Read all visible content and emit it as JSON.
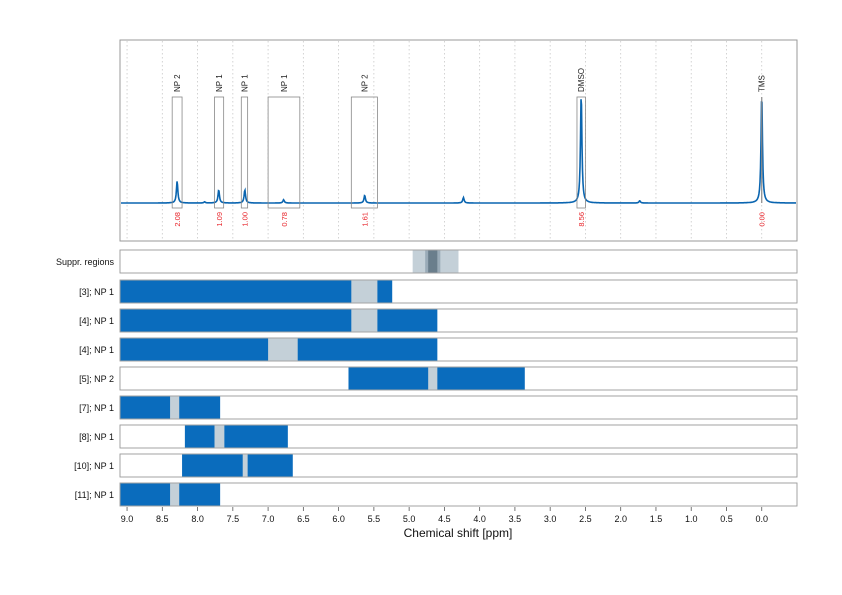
{
  "chart_data": {
    "type": "nmr-spectrum",
    "xlabel": "Chemical shift [ppm]",
    "xlim": [
      9.1,
      -0.5
    ],
    "xticks": [
      "9.0",
      "8.5",
      "8.0",
      "7.5",
      "7.0",
      "6.5",
      "6.0",
      "5.5",
      "5.0",
      "4.5",
      "4.0",
      "3.5",
      "3.0",
      "2.5",
      "2.0",
      "1.5",
      "1.0",
      "0.5",
      "0.0"
    ],
    "grid": "vertical-dotted",
    "colors": {
      "spectrum": "#0a65b0",
      "bar": "#0a6cbd",
      "suppressed": "#c4d0d8",
      "suppressed_core": "#6a7e8c",
      "integral": "#e8252b",
      "label": "#222222"
    },
    "peaks": [
      {
        "label": "NP 2",
        "range": [
          8.36,
          8.22
        ],
        "integral": "2.08",
        "center": 8.29,
        "height": 0.2
      },
      {
        "label": "NP 1",
        "range": [
          7.76,
          7.63
        ],
        "integral": "1.09",
        "center": 7.7,
        "height": 0.12
      },
      {
        "label": "NP 1",
        "range": [
          7.38,
          7.29
        ],
        "integral": "1.00",
        "center": 7.33,
        "height": 0.12
      },
      {
        "label": "NP 1",
        "range": [
          7.0,
          6.55
        ],
        "integral": "0.78",
        "center": 6.78,
        "height": 0.03
      },
      {
        "label": "NP 2",
        "range": [
          5.82,
          5.45
        ],
        "integral": "1.61",
        "center": 5.63,
        "height": 0.07
      },
      {
        "label": "DMSO",
        "range": [
          2.62,
          2.5
        ],
        "integral": "8.56",
        "center": 2.56,
        "height": 1.0
      },
      {
        "label": "TMS",
        "range": [
          0.01,
          -0.01
        ],
        "integral": "0.00",
        "center": 0.0,
        "height": 1.0
      }
    ],
    "minor_peaks": [
      {
        "center": 4.23,
        "height": 0.05
      },
      {
        "center": 1.73,
        "height": 0.02
      },
      {
        "center": 7.9,
        "height": 0.01
      }
    ],
    "rows": [
      {
        "label": "Suppr. regions",
        "type": "suppr",
        "outer": [
          4.95,
          4.3
        ],
        "core": [
          4.73,
          4.6
        ]
      },
      {
        "label": "[3]; NP 1",
        "bar": [
          9.1,
          5.24
        ],
        "gaps": [
          [
            5.82,
            5.45
          ]
        ]
      },
      {
        "label": "[4]; NP 1",
        "bar": [
          9.1,
          4.6
        ],
        "gaps": [
          [
            5.82,
            5.45
          ]
        ]
      },
      {
        "label": "[4]; NP 1",
        "bar": [
          9.1,
          4.6
        ],
        "gaps": [
          [
            7.0,
            6.58
          ]
        ]
      },
      {
        "label": "[5]; NP 2",
        "bar": [
          5.86,
          3.36
        ],
        "gaps": [
          [
            4.73,
            4.6
          ]
        ]
      },
      {
        "label": "[7]; NP 1",
        "bar": [
          9.1,
          7.68
        ],
        "gaps": [
          [
            8.39,
            8.26
          ]
        ]
      },
      {
        "label": "[8]; NP 1",
        "bar": [
          8.18,
          6.72
        ],
        "gaps": [
          [
            7.76,
            7.62
          ]
        ]
      },
      {
        "label": "[10]; NP 1",
        "bar": [
          8.22,
          6.65
        ],
        "gaps": [
          [
            7.36,
            7.29
          ]
        ]
      },
      {
        "label": "[11]; NP 1",
        "bar": [
          9.1,
          7.68
        ],
        "gaps": [
          [
            8.39,
            8.26
          ]
        ]
      }
    ]
  }
}
